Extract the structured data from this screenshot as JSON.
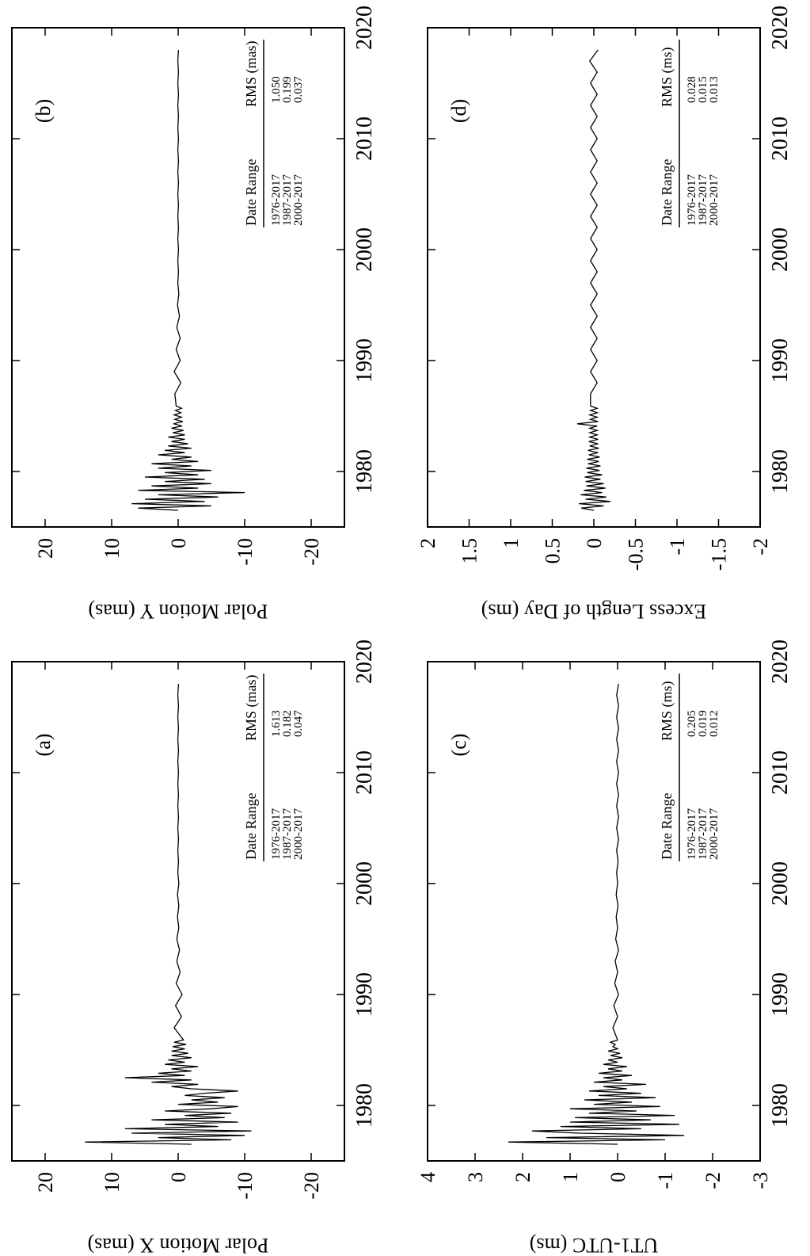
{
  "chart_data": [
    {
      "type": "line",
      "label": "(a)",
      "y_label": "Polar Motion X (mas)",
      "color": "#000000",
      "xlim": [
        1975,
        2020
      ],
      "xticks": [
        1980,
        1990,
        2000,
        2010,
        2020
      ],
      "ylim": [
        -25,
        25
      ],
      "yticks": [
        20,
        10,
        0,
        -10,
        -20
      ],
      "x": [
        1976.5,
        1976.7,
        1976.9,
        1977.1,
        1977.3,
        1977.5,
        1977.7,
        1977.9,
        1978.1,
        1978.3,
        1978.5,
        1978.7,
        1978.9,
        1979.1,
        1979.3,
        1979.5,
        1979.7,
        1979.9,
        1980.1,
        1980.3,
        1980.5,
        1980.7,
        1980.9,
        1981.1,
        1981.3,
        1981.5,
        1981.7,
        1981.9,
        1982.1,
        1982.3,
        1982.5,
        1982.7,
        1982.9,
        1983.1,
        1983.3,
        1983.5,
        1983.7,
        1983.9,
        1984.1,
        1984.3,
        1984.5,
        1984.7,
        1984.9,
        1985.1,
        1985.3,
        1985.5,
        1985.7,
        1985.9,
        1987,
        1988,
        1989,
        1990,
        1991,
        1992,
        1993,
        1994,
        1995,
        1996,
        1997,
        1998,
        1999,
        2000,
        2001,
        2002,
        2003,
        2004,
        2005,
        2006,
        2007,
        2008,
        2009,
        2010,
        2011,
        2012,
        2013,
        2014,
        2015,
        2016,
        2017,
        2018
      ],
      "values": [
        -2,
        14,
        -8,
        3,
        -10,
        7,
        -11,
        8,
        -6,
        2,
        -9,
        4,
        -7,
        -1,
        -8,
        2,
        -5,
        -9,
        0,
        -6,
        -2,
        -7,
        -1,
        -4,
        -9,
        -2,
        1,
        -3,
        4,
        -2,
        8,
        -1,
        3,
        -2,
        1,
        -3,
        2,
        -1,
        1.5,
        -2,
        1,
        -1.5,
        1,
        -1,
        0.8,
        -1.2,
        0.6,
        -0.8,
        0.6,
        -0.5,
        0.4,
        -0.6,
        0.3,
        -0.3,
        0.2,
        -0.2,
        0.2,
        -0.1,
        0.1,
        -0.1,
        0.1,
        -0.1,
        0.05,
        -0.05,
        0.05,
        -0.05,
        0.05,
        -0.05,
        0.05,
        -0.05,
        0.05,
        -0.05,
        0.05,
        -0.05,
        0.05,
        -0.05,
        0.05,
        -0.05,
        0.05,
        -0.05
      ],
      "table": {
        "header": [
          "Date Range",
          "RMS (mas)"
        ],
        "rows": [
          [
            "1976-2017",
            "1.613"
          ],
          [
            "1987-2017",
            "0.182"
          ],
          [
            "2000-2017",
            "0.047"
          ]
        ]
      }
    },
    {
      "type": "line",
      "label": "(b)",
      "y_label": "Polar Motion Y (mas)",
      "color": "#000000",
      "xlim": [
        1975,
        2020
      ],
      "xticks": [
        1980,
        1990,
        2000,
        2010,
        2020
      ],
      "ylim": [
        -25,
        25
      ],
      "yticks": [
        20,
        10,
        0,
        -10,
        -20
      ],
      "x": [
        1976.5,
        1976.7,
        1976.9,
        1977.1,
        1977.3,
        1977.5,
        1977.7,
        1977.9,
        1978.1,
        1978.3,
        1978.5,
        1978.7,
        1978.9,
        1979.1,
        1979.3,
        1979.5,
        1979.7,
        1979.9,
        1980.1,
        1980.3,
        1980.5,
        1980.7,
        1980.9,
        1981.1,
        1981.3,
        1981.5,
        1981.7,
        1981.9,
        1982.1,
        1982.3,
        1982.5,
        1982.7,
        1982.9,
        1983.1,
        1983.3,
        1983.5,
        1983.7,
        1983.9,
        1984.1,
        1984.3,
        1984.5,
        1984.7,
        1984.9,
        1985.1,
        1985.3,
        1985.5,
        1985.7,
        1985.9,
        1987,
        1988,
        1989,
        1990,
        1991,
        1992,
        1993,
        1994,
        1995,
        1996,
        1997,
        1998,
        1999,
        2000,
        2001,
        2002,
        2003,
        2004,
        2005,
        2006,
        2007,
        2008,
        2009,
        2010,
        2011,
        2012,
        2013,
        2014,
        2015,
        2016,
        2017,
        2018
      ],
      "values": [
        0,
        6,
        -5,
        7,
        -4,
        5,
        -6,
        3,
        -10,
        6,
        -3,
        4,
        -5,
        2,
        -4,
        5,
        -3,
        2,
        -5,
        3,
        -2,
        4,
        -3,
        1,
        -2,
        3,
        -1,
        2,
        -2,
        1.5,
        -1.5,
        1,
        -1,
        1.5,
        -1,
        0.8,
        -0.8,
        1,
        -0.6,
        0.7,
        -0.7,
        0.5,
        -0.5,
        0.6,
        -0.4,
        0.4,
        -0.5,
        0.3,
        0.5,
        -0.4,
        0.6,
        -0.3,
        0.3,
        -0.3,
        0.2,
        -0.2,
        0.1,
        -0.1,
        0.05,
        -0.05,
        0.05,
        -0.05,
        0.05,
        -0.05,
        0.05,
        -0.05,
        0.05,
        -0.05,
        0.05,
        -0.05,
        0.05,
        -0.05,
        0.05,
        -0.05,
        0.05,
        -0.05,
        0.05,
        -0.05,
        0.05,
        -0.05
      ],
      "table": {
        "header": [
          "Date Range",
          "RMS (mas)"
        ],
        "rows": [
          [
            "1976-2017",
            "1.050"
          ],
          [
            "1987-2017",
            "0.199"
          ],
          [
            "2000-2017",
            "0.037"
          ]
        ]
      }
    },
    {
      "type": "line",
      "label": "(c)",
      "y_label": "UT1-UTC (ms)",
      "color": "#000000",
      "xlim": [
        1975,
        2020
      ],
      "xticks": [
        1980,
        1990,
        2000,
        2010,
        2020
      ],
      "ylim": [
        -3,
        4
      ],
      "yticks": [
        4,
        3,
        2,
        1,
        0,
        -1,
        -2,
        -3
      ],
      "x": [
        1976.5,
        1976.7,
        1976.9,
        1977.1,
        1977.3,
        1977.5,
        1977.7,
        1977.9,
        1978.1,
        1978.3,
        1978.5,
        1978.7,
        1978.9,
        1979.1,
        1979.3,
        1979.5,
        1979.7,
        1979.9,
        1980.1,
        1980.3,
        1980.5,
        1980.7,
        1980.9,
        1981.1,
        1981.3,
        1981.5,
        1981.7,
        1981.9,
        1982.1,
        1982.3,
        1982.5,
        1982.7,
        1982.9,
        1983.1,
        1983.3,
        1983.5,
        1983.7,
        1983.9,
        1984.1,
        1984.3,
        1984.5,
        1984.7,
        1984.9,
        1985.1,
        1985.3,
        1985.5,
        1985.7,
        1985.9,
        1987,
        1988,
        1989,
        1990,
        1991,
        1992,
        1993,
        1994,
        1995,
        1996,
        1997,
        1998,
        1999,
        2000,
        2001,
        2002,
        2003,
        2004,
        2005,
        2006,
        2007,
        2008,
        2009,
        2010,
        2011,
        2012,
        2013,
        2014,
        2015,
        2016,
        2017,
        2018
      ],
      "values": [
        0,
        2.3,
        -1,
        1.5,
        -1.4,
        0.8,
        1.8,
        -0.5,
        1.2,
        -1.3,
        1,
        -0.7,
        0.9,
        -1.2,
        0.6,
        -0.4,
        1,
        -0.9,
        0.5,
        -0.3,
        0.7,
        -0.8,
        0.4,
        -0.5,
        0.6,
        -0.2,
        0.3,
        -0.6,
        0.5,
        -0.1,
        0.3,
        -0.3,
        0.4,
        -0.1,
        0.2,
        -0.2,
        0.3,
        0,
        0.2,
        -0.1,
        0.15,
        -0.05,
        0.2,
        0,
        0.1,
        0.05,
        0.15,
        0,
        0.1,
        0,
        0.08,
        -0.02,
        0.06,
        0,
        0.05,
        -0.02,
        0.04,
        0,
        0.03,
        -0.01,
        0.03,
        0,
        0.02,
        -0.01,
        0.02,
        -0.02,
        0.02,
        -0.02,
        0.02,
        -0.02,
        0.02,
        -0.02,
        0.02,
        -0.02,
        0.02,
        -0.02,
        0.02,
        -0.02,
        0.02,
        -0.02
      ],
      "table": {
        "header": [
          "Date Range",
          "RMS (ms)"
        ],
        "rows": [
          [
            "1976-2017",
            "0.205"
          ],
          [
            "1987-2017",
            "0.019"
          ],
          [
            "2000-2017",
            "0.012"
          ]
        ]
      }
    },
    {
      "type": "line",
      "label": "(d)",
      "y_label": "Excess Length of Day (ms)",
      "color": "#000000",
      "xlim": [
        1975,
        2020
      ],
      "xticks": [
        1980,
        1990,
        2000,
        2010,
        2020
      ],
      "ylim": [
        -2,
        2
      ],
      "yticks": [
        2,
        1.5,
        1,
        0.5,
        0,
        -0.5,
        -1,
        -1.5,
        -2
      ],
      "x": [
        1976.5,
        1976.7,
        1976.9,
        1977.1,
        1977.3,
        1977.5,
        1977.7,
        1977.9,
        1978.1,
        1978.3,
        1978.5,
        1978.7,
        1978.9,
        1979.1,
        1979.3,
        1979.5,
        1979.7,
        1979.9,
        1980.1,
        1980.3,
        1980.5,
        1980.7,
        1980.9,
        1981.1,
        1981.3,
        1981.5,
        1981.7,
        1981.9,
        1982.1,
        1982.3,
        1982.5,
        1982.7,
        1982.9,
        1983.1,
        1983.3,
        1983.5,
        1983.7,
        1983.9,
        1984.1,
        1984.3,
        1984.5,
        1984.7,
        1984.9,
        1985.1,
        1985.3,
        1985.5,
        1985.7,
        1985.9,
        1987,
        1988,
        1989,
        1990,
        1991,
        1992,
        1993,
        1994,
        1995,
        1996,
        1997,
        1998,
        1999,
        2000,
        2001,
        2002,
        2003,
        2004,
        2005,
        2006,
        2007,
        2008,
        2009,
        2010,
        2011,
        2012,
        2013,
        2014,
        2015,
        2016,
        2017,
        2018
      ],
      "values": [
        0,
        0.15,
        -0.12,
        0.18,
        -0.2,
        0.1,
        -0.15,
        0.16,
        -0.1,
        0.12,
        -0.14,
        0.09,
        -0.12,
        0.1,
        -0.08,
        0.11,
        -0.1,
        0.08,
        -0.07,
        0.09,
        -0.08,
        0.07,
        -0.06,
        0.08,
        -0.07,
        0.06,
        -0.05,
        0.07,
        -0.06,
        0.05,
        -0.05,
        0.06,
        -0.05,
        0.05,
        -0.04,
        0.05,
        -0.04,
        0.05,
        -0.04,
        0.2,
        -0.05,
        0.04,
        -0.04,
        0.05,
        -0.04,
        0.04,
        -0.04,
        0.04,
        0.04,
        -0.04,
        0.04,
        -0.04,
        0.04,
        -0.04,
        0.04,
        -0.04,
        0.04,
        -0.04,
        0.04,
        -0.04,
        0.04,
        -0.04,
        0.04,
        -0.04,
        0.04,
        -0.04,
        0.04,
        -0.04,
        0.04,
        -0.04,
        0.04,
        -0.04,
        0.04,
        -0.04,
        0.04,
        -0.04,
        0.04,
        -0.04,
        0.05,
        -0.05
      ],
      "table": {
        "header": [
          "Date Range",
          "RMS (ms)"
        ],
        "rows": [
          [
            "1976-2017",
            "0.028"
          ],
          [
            "1987-2017",
            "0.015"
          ],
          [
            "2000-2017",
            "0.013"
          ]
        ]
      }
    }
  ]
}
